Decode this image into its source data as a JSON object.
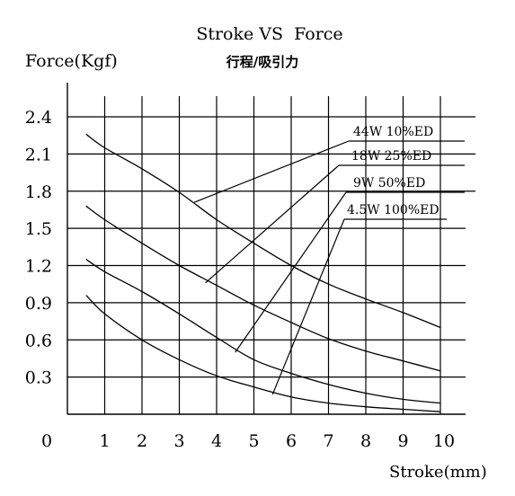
{
  "chart_data": {
    "type": "line",
    "title": "Stroke VS  Force",
    "subtitle": "行程/吸引力",
    "xlabel": "Stroke(mm)",
    "ylabel": "Force(Kgf)",
    "xlim": [
      0,
      10
    ],
    "ylim": [
      0,
      2.4
    ],
    "x_ticks": [
      "0",
      "1",
      "2",
      "3",
      "4",
      "5",
      "6",
      "7",
      "8",
      "9",
      "10"
    ],
    "y_ticks": [
      "0.3",
      "0.6",
      "0.9",
      "1.2",
      "1.5",
      "1.8",
      "2.1",
      "2.4"
    ],
    "grid": true,
    "series": [
      {
        "name": "44W  10%ED",
        "x": [
          0.5,
          1,
          2,
          3,
          4,
          5,
          6,
          7,
          8,
          9,
          10
        ],
        "y": [
          2.26,
          2.15,
          1.98,
          1.79,
          1.57,
          1.38,
          1.2,
          1.05,
          0.93,
          0.82,
          0.7
        ]
      },
      {
        "name": "18W  25%ED",
        "x": [
          0.5,
          1,
          2,
          3,
          4,
          5,
          6,
          7,
          8,
          9,
          10
        ],
        "y": [
          1.68,
          1.57,
          1.38,
          1.2,
          1.04,
          0.88,
          0.74,
          0.61,
          0.51,
          0.43,
          0.35
        ]
      },
      {
        "name": "9W   50%ED",
        "x": [
          0.5,
          1,
          2,
          3,
          4,
          5,
          6,
          7,
          8,
          9,
          10
        ],
        "y": [
          1.25,
          1.15,
          0.99,
          0.81,
          0.62,
          0.44,
          0.33,
          0.24,
          0.17,
          0.12,
          0.09
        ]
      },
      {
        "name": "4.5W  100%ED",
        "x": [
          0.5,
          1,
          2,
          3,
          4,
          5,
          6,
          7,
          8,
          9,
          10
        ],
        "y": [
          0.96,
          0.81,
          0.6,
          0.44,
          0.31,
          0.22,
          0.14,
          0.09,
          0.06,
          0.04,
          0.02
        ]
      }
    ],
    "callouts": [
      {
        "series": 0,
        "x": 3.4,
        "y": 1.71
      },
      {
        "series": 1,
        "x": 3.7,
        "y": 1.06
      },
      {
        "series": 2,
        "x": 4.5,
        "y": 0.5
      },
      {
        "series": 3,
        "x": 5.5,
        "y": 0.16
      }
    ]
  }
}
